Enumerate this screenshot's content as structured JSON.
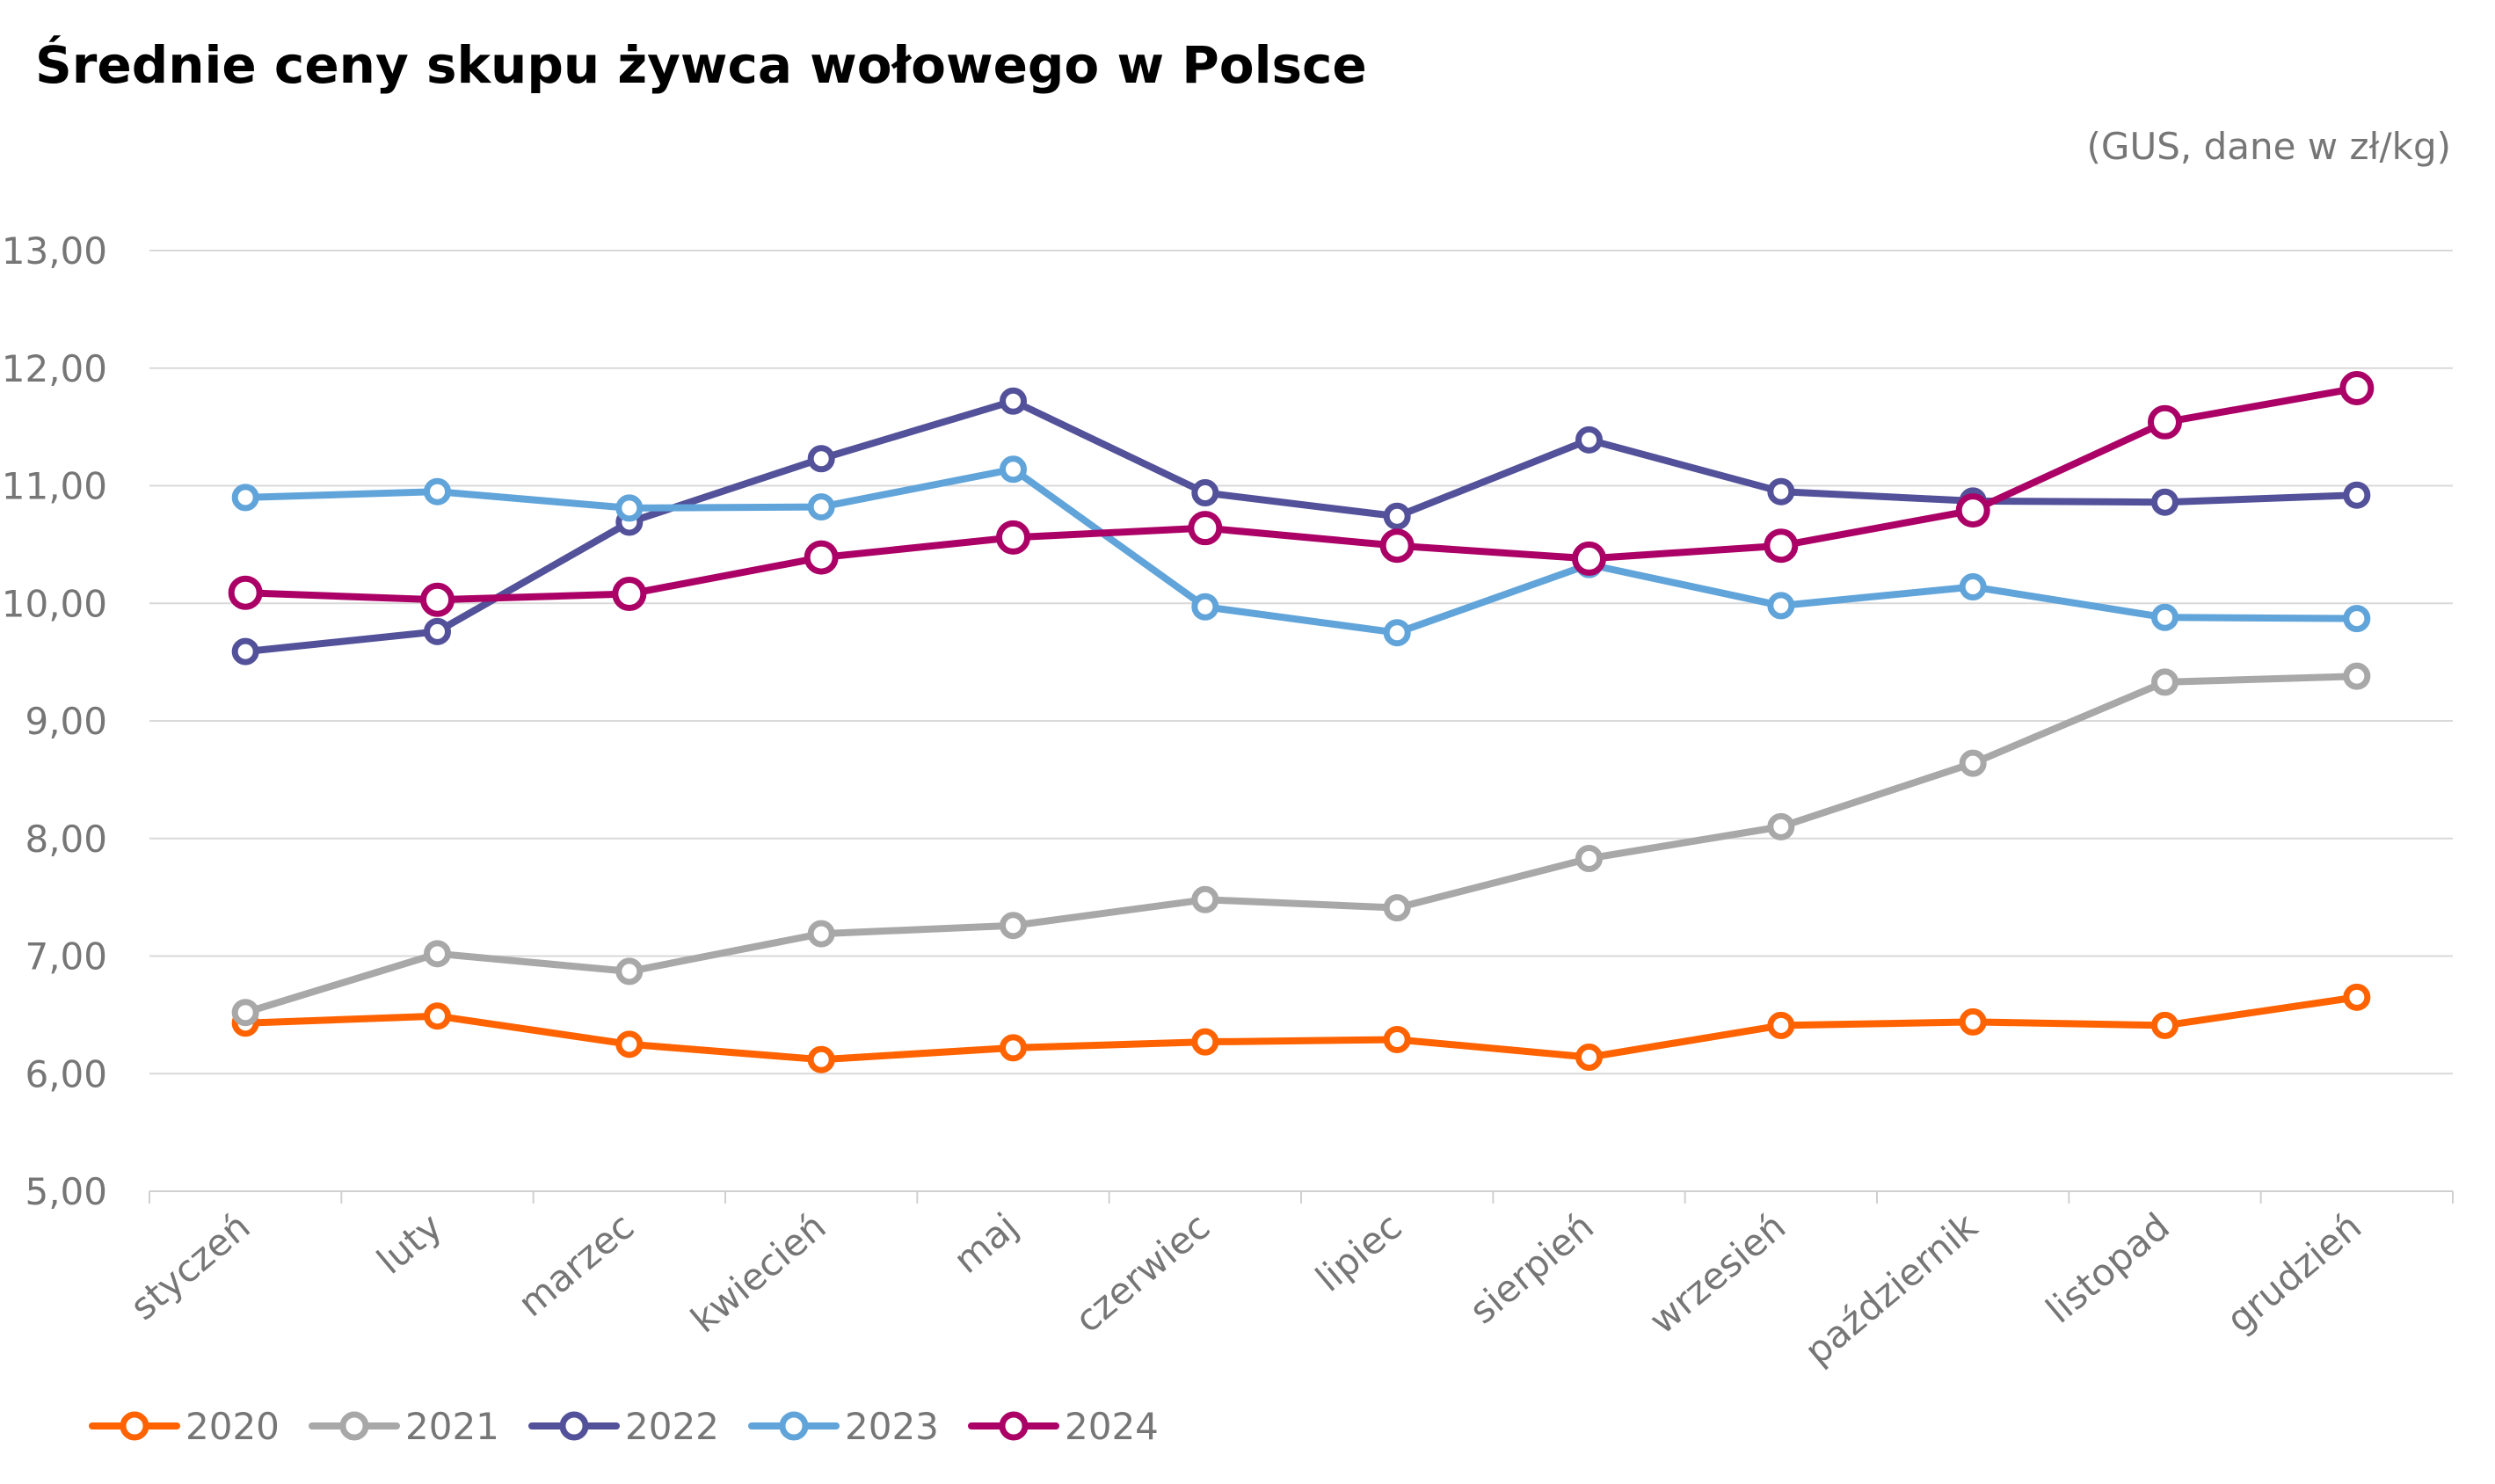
{
  "colors": {
    "2020": "#FF6200",
    "2021": "#A8A8A8",
    "2022": "#525199",
    "2023": "#60A4DA",
    "2024": "#AB0066",
    "grid": "#D9D9D9",
    "axis": "#D0D0D0",
    "text": "#767676",
    "title": "#000000"
  },
  "chart_data": {
    "type": "line",
    "title": "Średnie ceny skupu żywca wołowego w Polsce",
    "subtitle": "(GUS, dane w zł/kg)",
    "xlabel": "",
    "ylabel": "",
    "ylim": [
      5,
      13
    ],
    "yticks": [
      "5,00",
      "6,00",
      "7,00",
      "8,00",
      "9,00",
      "10,00",
      "11,00",
      "12,00",
      "13,00"
    ],
    "grid": true,
    "legend_position": "bottom-left",
    "categories": [
      "styczeń",
      "luty",
      "marzec",
      "kwiecień",
      "maj",
      "czerwiec",
      "lipiec",
      "sierpień",
      "wrzesień",
      "październik",
      "listopad",
      "grudzień"
    ],
    "series": [
      {
        "name": "2020",
        "values": [
          6.43,
          6.49,
          6.25,
          6.12,
          6.22,
          6.27,
          6.29,
          6.14,
          6.41,
          6.44,
          6.41,
          6.65
        ]
      },
      {
        "name": "2021",
        "values": [
          6.52,
          7.02,
          6.87,
          7.19,
          7.26,
          7.48,
          7.41,
          7.83,
          8.1,
          8.64,
          9.33,
          9.38
        ]
      },
      {
        "name": "2022",
        "values": [
          9.59,
          9.76,
          10.69,
          11.23,
          11.72,
          10.94,
          10.74,
          11.39,
          10.95,
          10.87,
          10.86,
          10.92
        ]
      },
      {
        "name": "2023",
        "values": [
          10.9,
          10.95,
          10.81,
          10.82,
          11.14,
          9.97,
          9.75,
          10.33,
          9.98,
          10.14,
          9.88,
          9.87
        ]
      },
      {
        "name": "2024",
        "values": [
          10.09,
          10.03,
          10.08,
          10.39,
          10.56,
          10.64,
          10.49,
          10.38,
          10.49,
          10.79,
          11.54,
          11.83
        ]
      }
    ]
  }
}
